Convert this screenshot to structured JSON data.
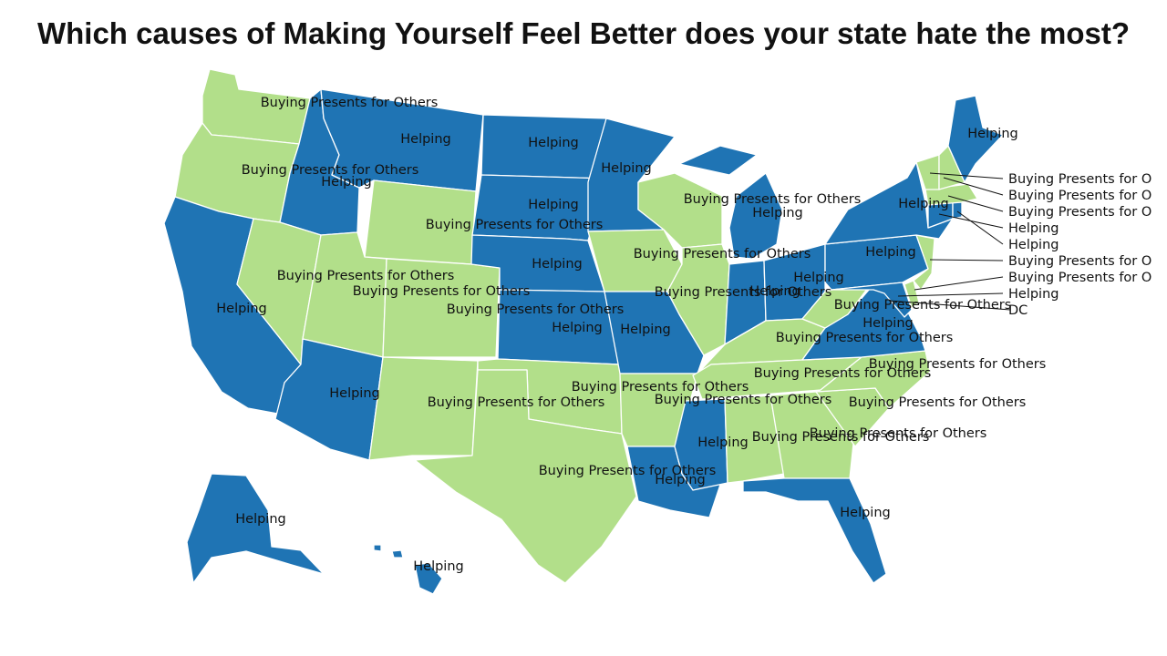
{
  "title": "Which causes of Making Yourself Feel Better does your state hate the most?",
  "colors": {
    "Helping": "#1f74b4",
    "Buying Presents for Others": "#b2df8a",
    "background": "#ffffff",
    "border": "#ffffff"
  },
  "states": {
    "WA": {
      "category": "Buying Presents for Others",
      "label": "Buying Presents for Others"
    },
    "OR": {
      "category": "Buying Presents for Others",
      "label": "Buying Presents for Others"
    },
    "CA": {
      "category": "Helping",
      "label": "Helping"
    },
    "ID": {
      "category": "Helping",
      "label": "Helping"
    },
    "NV": {
      "category": "Buying Presents for Others",
      "label": "Buying Presents for Others"
    },
    "MT": {
      "category": "Helping",
      "label": "Helping"
    },
    "WY": {
      "category": "Buying Presents for Others",
      "label": "Buying Presents for Others"
    },
    "UT": {
      "category": "Buying Presents for Others",
      "label": "Buying Presents for Others"
    },
    "AZ": {
      "category": "Helping",
      "label": "Helping"
    },
    "CO": {
      "category": "Buying Presents for Others",
      "label": "Buying Presents for Others"
    },
    "NM": {
      "category": "Buying Presents for Others",
      "label": "Buying Presents for Others"
    },
    "ND": {
      "category": "Helping",
      "label": "Helping"
    },
    "SD": {
      "category": "Helping",
      "label": "Helping"
    },
    "NE": {
      "category": "Helping",
      "label": "Helping"
    },
    "KS": {
      "category": "Helping",
      "label": "Helping"
    },
    "OK": {
      "category": "Buying Presents for Others",
      "label": "Buying Presents for Others"
    },
    "TX": {
      "category": "Buying Presents for Others",
      "label": "Buying Presents for Others"
    },
    "MN": {
      "category": "Helping",
      "label": "Helping"
    },
    "IA": {
      "category": "Buying Presents for Others",
      "label": "Buying Presents for Others"
    },
    "MO": {
      "category": "Helping",
      "label": "Helping"
    },
    "AR": {
      "category": "Buying Presents for Others",
      "label": "Buying Presents for Others"
    },
    "LA": {
      "category": "Helping",
      "label": "Helping"
    },
    "WI": {
      "category": "Buying Presents for Others",
      "label": "Buying Presents for Others"
    },
    "IL": {
      "category": "Buying Presents for Others",
      "label": "Buying Presents for Others"
    },
    "MI": {
      "category": "Helping",
      "label": "Helping"
    },
    "IN": {
      "category": "Helping",
      "label": "Helping"
    },
    "OH": {
      "category": "Helping",
      "label": "Helping"
    },
    "KY": {
      "category": "Buying Presents for Others",
      "label": "Buying Presents for Others"
    },
    "TN": {
      "category": "Buying Presents for Others",
      "label": "Buying Presents for Others"
    },
    "MS": {
      "category": "Helping",
      "label": "Helping"
    },
    "AL": {
      "category": "Buying Presents for Others",
      "label": "Buying Presents for Others"
    },
    "GA": {
      "category": "Buying Presents for Others",
      "label": "Buying Presents for Others"
    },
    "FL": {
      "category": "Helping",
      "label": "Helping"
    },
    "SC": {
      "category": "Buying Presents for Others",
      "label": "Buying Presents for Others"
    },
    "NC": {
      "category": "Buying Presents for Others",
      "label": "Buying Presents for Others"
    },
    "VA": {
      "category": "Helping",
      "label": "Helping"
    },
    "WV": {
      "category": "Buying Presents for Others",
      "label": "Buying Presents for Others"
    },
    "PA": {
      "category": "Helping",
      "label": "Helping"
    },
    "NY": {
      "category": "Helping",
      "label": "Helping"
    },
    "ME": {
      "category": "Helping",
      "label": "Helping"
    },
    "NH": {
      "category": "Buying Presents for Others",
      "label": "Buying Presents for O"
    },
    "VT": {
      "category": "Buying Presents for Others",
      "label": "Buying Presents for O"
    },
    "MA": {
      "category": "Buying Presents for Others",
      "label": "Buying Presents for O"
    },
    "CT": {
      "category": "Helping",
      "label": "Helping"
    },
    "RI": {
      "category": "Helping",
      "label": "Helping"
    },
    "NJ": {
      "category": "Buying Presents for Others",
      "label": "Buying Presents for O"
    },
    "DE": {
      "category": "Buying Presents for Others",
      "label": "Buying Presents for O"
    },
    "MD": {
      "category": "Helping",
      "label": "Helping"
    },
    "DC": {
      "category": "Buying Presents for Others",
      "label": "DC"
    },
    "AK": {
      "category": "Helping",
      "label": "Helping"
    },
    "HI": {
      "category": "Helping",
      "label": "Helping"
    }
  }
}
